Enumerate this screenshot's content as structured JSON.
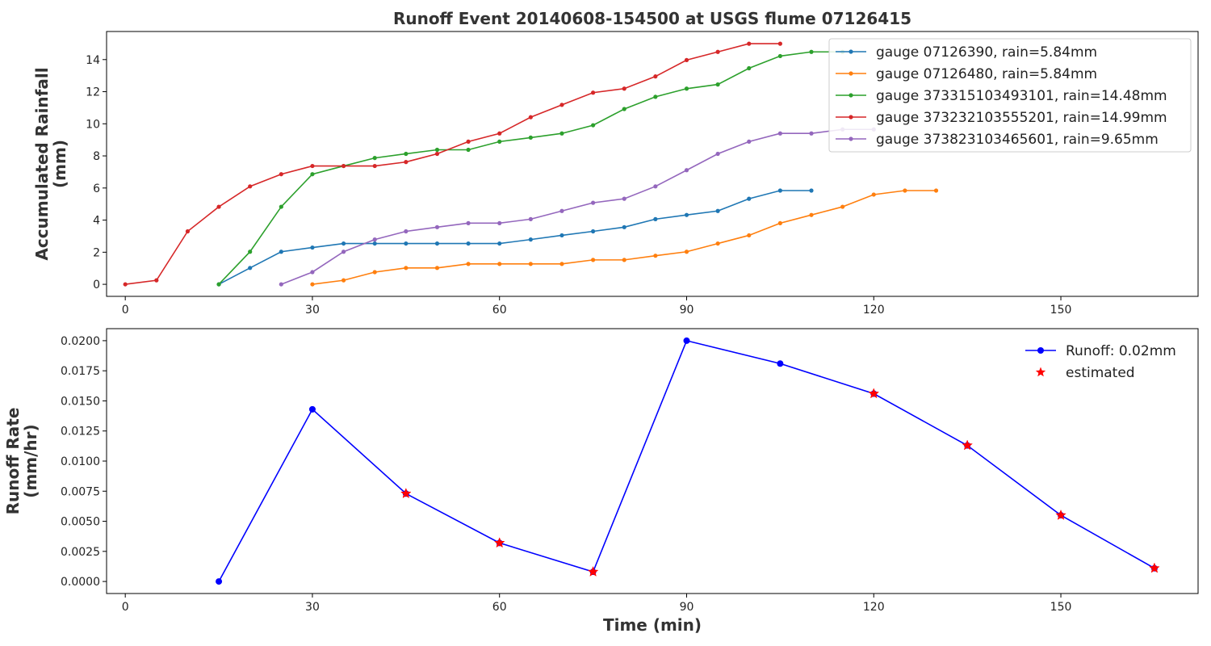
{
  "chart_data": [
    {
      "type": "line",
      "title": "Runoff Event 20140608-154500 at USGS flume 07126415",
      "xlabel": "",
      "ylabel": "Accumulated Rainfall\n(mm)",
      "xlim": [
        -3,
        172
      ],
      "ylim": [
        -0.75,
        15.75
      ],
      "xticks": [
        0,
        30,
        60,
        90,
        120,
        150
      ],
      "yticks": [
        0,
        2,
        4,
        6,
        8,
        10,
        12,
        14
      ],
      "legend_position": "top-right",
      "series": [
        {
          "name": "gauge 07126390, rain=5.84mm",
          "color": "#1f77b4",
          "x": [
            15,
            20,
            25,
            30,
            35,
            40,
            45,
            50,
            55,
            60,
            65,
            70,
            75,
            80,
            85,
            90,
            95,
            100,
            105,
            110
          ],
          "y": [
            0,
            1.02,
            2.03,
            2.29,
            2.54,
            2.54,
            2.54,
            2.54,
            2.54,
            2.54,
            2.79,
            3.05,
            3.3,
            3.56,
            4.06,
            4.32,
            4.57,
            5.33,
            5.84,
            5.84
          ]
        },
        {
          "name": "gauge 07126480, rain=5.84mm",
          "color": "#ff7f0e",
          "x": [
            30,
            35,
            40,
            45,
            50,
            55,
            60,
            65,
            70,
            75,
            80,
            85,
            90,
            95,
            100,
            105,
            110,
            115,
            120,
            125,
            130
          ],
          "y": [
            0,
            0.25,
            0.76,
            1.02,
            1.02,
            1.27,
            1.27,
            1.27,
            1.27,
            1.52,
            1.52,
            1.78,
            2.03,
            2.54,
            3.05,
            3.81,
            4.32,
            4.83,
            5.59,
            5.84,
            5.84
          ]
        },
        {
          "name": "gauge 373315103493101, rain=14.48mm",
          "color": "#2ca02c",
          "x": [
            15,
            20,
            25,
            30,
            35,
            40,
            45,
            50,
            55,
            60,
            65,
            70,
            75,
            80,
            85,
            90,
            95,
            100,
            105,
            110,
            115
          ],
          "y": [
            0,
            2.03,
            4.83,
            6.86,
            7.37,
            7.87,
            8.13,
            8.38,
            8.38,
            8.89,
            9.14,
            9.4,
            9.91,
            10.92,
            11.68,
            12.19,
            12.45,
            13.46,
            14.22,
            14.48,
            14.48
          ]
        },
        {
          "name": "gauge 373232103555201, rain=14.99mm",
          "color": "#d62728",
          "x": [
            0,
            5,
            10,
            15,
            20,
            25,
            30,
            35,
            40,
            45,
            50,
            55,
            60,
            65,
            70,
            75,
            80,
            85,
            90,
            95,
            100,
            105
          ],
          "y": [
            0,
            0.25,
            3.3,
            4.83,
            6.1,
            6.86,
            7.37,
            7.37,
            7.37,
            7.62,
            8.13,
            8.89,
            9.4,
            10.41,
            11.18,
            11.94,
            12.19,
            12.95,
            13.97,
            14.48,
            14.99,
            14.99
          ]
        },
        {
          "name": "gauge 373823103465601, rain=9.65mm",
          "color": "#9467bd",
          "x": [
            25,
            30,
            35,
            40,
            45,
            50,
            55,
            60,
            65,
            70,
            75,
            80,
            85,
            90,
            95,
            100,
            105,
            110,
            115,
            120
          ],
          "y": [
            0,
            0.76,
            2.03,
            2.79,
            3.3,
            3.56,
            3.81,
            3.81,
            4.06,
            4.57,
            5.08,
            5.33,
            6.1,
            7.11,
            8.13,
            8.89,
            9.4,
            9.4,
            9.65,
            9.65
          ]
        }
      ]
    },
    {
      "type": "line",
      "title": "",
      "xlabel": "Time (min)",
      "ylabel": "Runoff Rate\n(mm/hr)",
      "xlim": [
        -3,
        172
      ],
      "ylim": [
        -0.001,
        0.021
      ],
      "xticks": [
        0,
        30,
        60,
        90,
        120,
        150
      ],
      "yticks": [
        0,
        0.0025,
        0.005,
        0.0075,
        0.01,
        0.0125,
        0.015,
        0.0175,
        0.02
      ],
      "ytick_labels": [
        "0.0000",
        "0.0025",
        "0.0050",
        "0.0075",
        "0.0100",
        "0.0125",
        "0.0150",
        "0.0175",
        "0.0200"
      ],
      "legend_position": "top-right",
      "series": [
        {
          "name": "Runoff: 0.02mm",
          "color": "#0000ff",
          "marker": "circle",
          "x": [
            15,
            30,
            45,
            60,
            75,
            90,
            105,
            120,
            135,
            150,
            165
          ],
          "y": [
            0,
            0.0143,
            0.0073,
            0.0032,
            0.0008,
            0.02,
            0.0181,
            0.0156,
            0.0113,
            0.0055,
            0.0011
          ]
        },
        {
          "name": "estimated",
          "color": "#ff0000",
          "marker": "star",
          "x": [
            45,
            60,
            75,
            120,
            135,
            150,
            165
          ],
          "y": [
            0.0073,
            0.0032,
            0.0008,
            0.0156,
            0.0113,
            0.0055,
            0.0011
          ]
        }
      ]
    }
  ]
}
